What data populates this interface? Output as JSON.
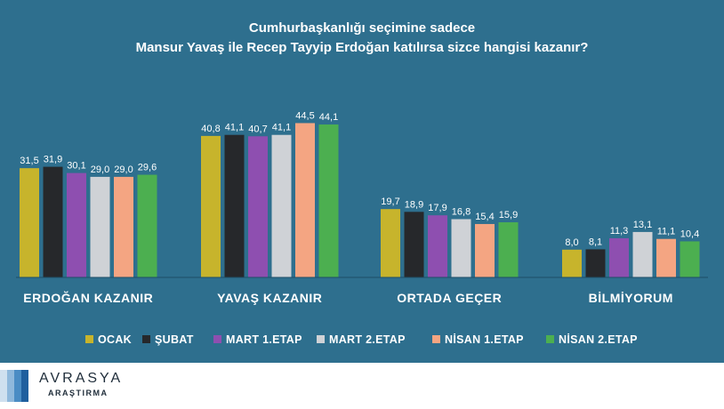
{
  "title": [
    "Cumhurbaşkanlığı seçimine sadece",
    "Mansur Yavaş ile Recep Tayyip Erdoğan katılırsa sizce hangisi kazanır?"
  ],
  "footer": {
    "brand": "AVRASYA",
    "brand_sub": "ARAŞTIRMA"
  },
  "colors": {
    "background": "#2e6f8e",
    "footer_bg": "#ffffff"
  },
  "chart_data": {
    "type": "bar",
    "title": "Cumhurbaşkanlığı seçimine sadece Mansur Yavaş ile Recep Tayyip Erdoğan katılırsa sizce hangisi kazanır?",
    "categories": [
      "ERDOĞAN KAZANIR",
      "YAVAŞ KAZANIR",
      "ORTADA GEÇER",
      "BİLMİYORUM"
    ],
    "series": [
      {
        "name": "OCAK",
        "color": "#c7b42c",
        "values": [
          31.5,
          40.8,
          19.7,
          8.0
        ]
      },
      {
        "name": "ŞUBAT",
        "color": "#26282b",
        "values": [
          31.9,
          41.1,
          18.9,
          8.1
        ]
      },
      {
        "name": "MART 1.ETAP",
        "color": "#8e4fb0",
        "values": [
          30.1,
          40.7,
          17.9,
          11.3
        ]
      },
      {
        "name": "MART 2.ETAP",
        "color": "#cfd2d6",
        "values": [
          29.0,
          41.1,
          16.8,
          13.1
        ]
      },
      {
        "name": "NİSAN 1.ETAP",
        "color": "#f4a582",
        "values": [
          29.0,
          44.5,
          15.4,
          11.1
        ]
      },
      {
        "name": "NİSAN 2.ETAP",
        "color": "#4caf50",
        "values": [
          29.6,
          44.1,
          15.9,
          10.4
        ]
      }
    ],
    "value_labels": [
      [
        "31,5",
        "40,8",
        "19,7",
        "8,0"
      ],
      [
        "31,9",
        "41,1",
        "18,9",
        "8,1"
      ],
      [
        "30,1",
        "40,7",
        "17,9",
        "11,3"
      ],
      [
        "29,0",
        "41,1",
        "16,8",
        "13,1"
      ],
      [
        "29,0",
        "44,5",
        "15,4",
        "11,1"
      ],
      [
        "29,6",
        "44,1",
        "15,9",
        "10,4"
      ]
    ],
    "ylim": [
      0,
      50
    ],
    "grid": false,
    "legend": "bottom",
    "xlabel": "",
    "ylabel": ""
  }
}
